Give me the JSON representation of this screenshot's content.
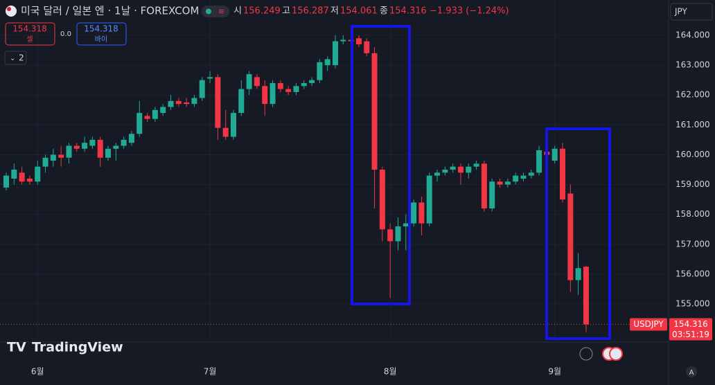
{
  "header": {
    "symbol": "미국 달러 / 일본 엔 · 1날 · FOREXCOM",
    "o_label": "시",
    "o": "156.249",
    "h_label": "고",
    "h": "156.287",
    "l_label": "저",
    "l": "154.061",
    "c_label": "종",
    "c": "154.316",
    "change": "−1.933 (−1.24%)",
    "sell_price": "154.318",
    "sell_label": "셀",
    "spread": "0.0",
    "buy_price": "154.318",
    "buy_label": "바이",
    "indicators": "2",
    "currency": "JPY",
    "logo": "TradingView",
    "auto": "A"
  },
  "chart_data": {
    "type": "candlestick",
    "symbol_label": "USDJPY",
    "last_price": 154.316,
    "countdown": "03:51:19",
    "up_color": "#22ab94",
    "down_color": "#f23645",
    "grid": true,
    "ylim": [
      153.724,
      165.183
    ],
    "yticks": [
      {
        "value": 155,
        "label": "155.000"
      },
      {
        "value": 156,
        "label": "156.000"
      },
      {
        "value": 157,
        "label": "157.000"
      },
      {
        "value": 158,
        "label": "158.000"
      },
      {
        "value": 159,
        "label": "159.000"
      },
      {
        "value": 160,
        "label": "160.000"
      },
      {
        "value": 161,
        "label": "161.000"
      },
      {
        "value": 162,
        "label": "162.000"
      },
      {
        "value": 163,
        "label": "163.000"
      },
      {
        "value": 164,
        "label": "164.000"
      }
    ],
    "categories": [
      null,
      null,
      null,
      null,
      "6월",
      null,
      null,
      null,
      null,
      null,
      null,
      null,
      null,
      null,
      null,
      null,
      null,
      null,
      null,
      null,
      null,
      null,
      null,
      null,
      null,
      null,
      "7월",
      null,
      null,
      null,
      null,
      null,
      null,
      null,
      null,
      null,
      null,
      null,
      null,
      null,
      null,
      null,
      null,
      null,
      null,
      null,
      null,
      null,
      null,
      "8월",
      null,
      null,
      null,
      null,
      null,
      null,
      null,
      null,
      null,
      null,
      null,
      null,
      null,
      null,
      null,
      null,
      null,
      null,
      null,
      null,
      "9월",
      null,
      null,
      null,
      null
    ],
    "open": [
      158.9,
      159.2,
      159.4,
      159.2,
      159.1,
      159.6,
      159.8,
      160.0,
      159.9,
      160.3,
      160.2,
      160.3,
      160.5,
      159.9,
      160.2,
      160.3,
      160.4,
      160.7,
      161.3,
      161.2,
      161.4,
      161.6,
      161.8,
      161.75,
      161.7,
      161.9,
      162.55,
      162.6,
      160.9,
      160.6,
      161.4,
      162.2,
      162.6,
      162.3,
      161.7,
      162.4,
      162.2,
      162.1,
      162.3,
      162.4,
      162.5,
      163.0,
      163.0,
      163.8,
      163.85,
      163.9,
      163.8,
      163.4,
      159.5,
      157.5,
      157.1,
      157.6,
      157.7,
      158.4,
      157.7,
      159.3,
      159.4,
      159.5,
      159.6,
      159.4,
      159.6,
      159.7,
      158.2,
      159.1,
      159.0,
      159.1,
      159.2,
      159.3,
      159.4,
      160.1,
      159.8,
      160.2,
      158.7,
      155.8,
      156.249
    ],
    "high": [
      159.4,
      159.7,
      159.6,
      159.3,
      159.8,
      160.0,
      160.2,
      160.3,
      160.4,
      160.4,
      160.6,
      160.6,
      160.6,
      160.3,
      160.4,
      160.6,
      160.8,
      161.8,
      161.4,
      161.6,
      161.7,
      162.0,
      161.9,
      161.9,
      162.0,
      162.6,
      162.8,
      162.7,
      161.5,
      161.5,
      162.5,
      162.8,
      162.7,
      162.5,
      162.5,
      162.5,
      162.3,
      162.4,
      162.5,
      162.6,
      163.2,
      163.3,
      164.0,
      164.0,
      164.0,
      164.0,
      163.9,
      163.6,
      159.6,
      157.7,
      157.9,
      158.0,
      158.5,
      158.6,
      159.4,
      159.5,
      159.6,
      159.7,
      159.7,
      159.7,
      159.8,
      159.8,
      159.2,
      159.2,
      159.2,
      159.4,
      159.4,
      159.5,
      160.3,
      160.2,
      160.3,
      160.4,
      159.0,
      156.7,
      156.287
    ],
    "low": [
      158.8,
      159.0,
      159.0,
      159.0,
      159.0,
      159.4,
      159.6,
      159.6,
      159.7,
      160.1,
      160.1,
      160.2,
      159.6,
      159.8,
      159.8,
      160.2,
      160.3,
      160.6,
      161.1,
      161.1,
      161.3,
      161.5,
      161.6,
      161.6,
      161.6,
      161.8,
      162.4,
      160.5,
      160.5,
      160.5,
      161.3,
      162.0,
      162.2,
      161.3,
      161.6,
      162.1,
      162.0,
      162.0,
      162.2,
      162.3,
      162.4,
      162.8,
      162.9,
      163.7,
      163.7,
      163.6,
      163.3,
      158.2,
      157.1,
      155.2,
      156.8,
      156.8,
      157.6,
      157.3,
      157.6,
      159.1,
      159.3,
      159.4,
      159.0,
      159.2,
      159.5,
      158.1,
      158.1,
      158.9,
      158.9,
      159.0,
      159.1,
      159.2,
      159.3,
      159.9,
      159.7,
      158.4,
      155.4,
      155.3,
      154.061
    ],
    "close": [
      159.3,
      159.5,
      159.1,
      159.1,
      159.6,
      159.9,
      160.0,
      159.9,
      160.3,
      160.2,
      160.4,
      160.5,
      159.9,
      160.2,
      160.3,
      160.5,
      160.7,
      161.4,
      161.2,
      161.5,
      161.6,
      161.8,
      161.7,
      161.7,
      161.9,
      162.5,
      162.6,
      160.9,
      160.6,
      161.4,
      162.2,
      162.7,
      162.3,
      161.7,
      162.4,
      162.2,
      162.1,
      162.3,
      162.4,
      162.5,
      163.1,
      163.2,
      163.8,
      163.85,
      163.8,
      163.7,
      163.4,
      159.5,
      157.5,
      157.1,
      157.6,
      157.7,
      158.4,
      157.7,
      159.3,
      159.4,
      159.5,
      159.6,
      159.4,
      159.6,
      159.7,
      158.2,
      159.1,
      159.0,
      159.1,
      159.3,
      159.3,
      159.4,
      160.15,
      160.0,
      160.2,
      158.5,
      155.8,
      156.2,
      154.316
    ]
  }
}
